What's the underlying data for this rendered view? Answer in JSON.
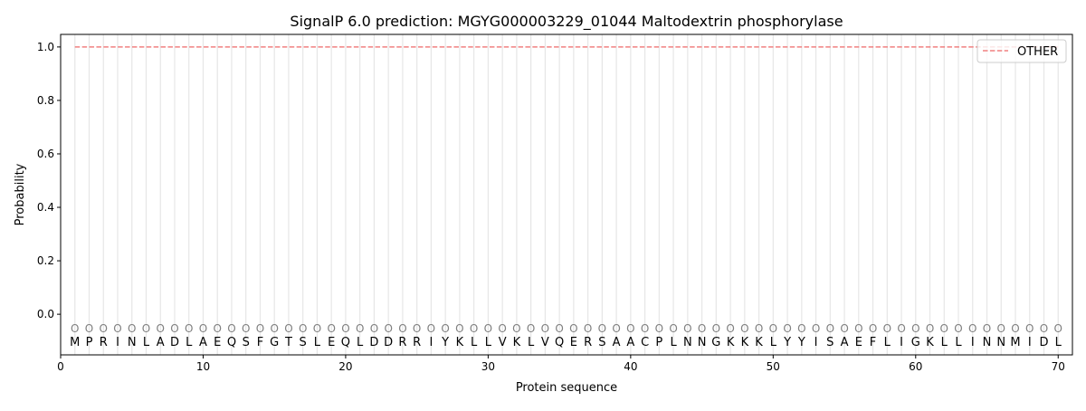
{
  "chart_data": {
    "type": "line",
    "title": "SignalP 6.0 prediction: MGYG000003229_01044 Maltodextrin phosphorylase",
    "xlabel": "Protein sequence",
    "ylabel": "Probability",
    "xlim": [
      0,
      71
    ],
    "ylim": [
      -0.152,
      1.047
    ],
    "xticks": [
      0,
      10,
      20,
      30,
      40,
      50,
      60,
      70
    ],
    "yticks": [
      0.0,
      0.2,
      0.4,
      0.6,
      0.8,
      1.0
    ],
    "xtick_labels": [
      "0",
      "10",
      "20",
      "30",
      "40",
      "50",
      "60",
      "70"
    ],
    "ytick_labels": [
      "0.0",
      "0.2",
      "0.4",
      "0.6",
      "0.8",
      "1.0"
    ],
    "grid": "vertical lines at each residue",
    "legend_position": "top-right",
    "series": [
      {
        "name": "OTHER",
        "color": "#f08080",
        "style": "dashed",
        "x_start": 1,
        "x_end": 70,
        "value": 1.0
      }
    ],
    "sequence": [
      "M",
      "P",
      "R",
      "I",
      "N",
      "L",
      "A",
      "D",
      "L",
      "A",
      "E",
      "Q",
      "S",
      "F",
      "G",
      "T",
      "S",
      "L",
      "E",
      "Q",
      "L",
      "D",
      "D",
      "R",
      "R",
      "I",
      "Y",
      "K",
      "L",
      "L",
      "V",
      "K",
      "L",
      "V",
      "Q",
      "E",
      "R",
      "S",
      "A",
      "A",
      "C",
      "P",
      "L",
      "N",
      "N",
      "G",
      "K",
      "K",
      "K",
      "L",
      "Y",
      "Y",
      "I",
      "S",
      "A",
      "E",
      "F",
      "L",
      "I",
      "G",
      "K",
      "L",
      "L",
      "I",
      "N",
      "N",
      "M",
      "I",
      "D",
      "L"
    ],
    "predicted_labels": "OOOOOOOOOOOOOOOOOOOOOOOOOOOOOOOOOOOOOOOOOOOOOOOOOOOOOOOOOOOOOOOOOOOOOO",
    "label_y": -0.05
  }
}
